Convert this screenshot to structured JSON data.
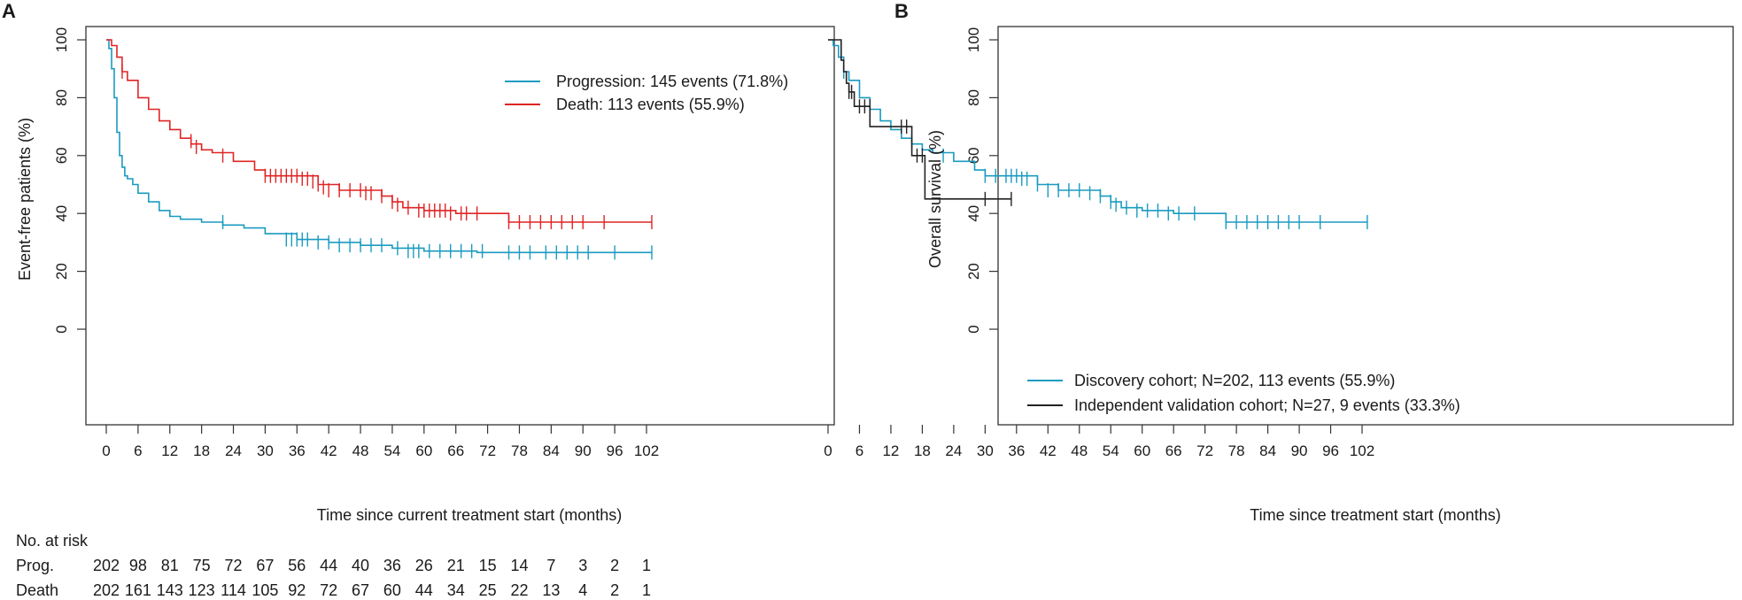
{
  "colors": {
    "progression": "#1a9bc0",
    "death": "#e02424",
    "discovery": "#1a9bc0",
    "validation": "#222222",
    "axis": "#333333"
  },
  "chart_data": [
    {
      "panel": "A",
      "type": "line",
      "xlabel": "Time since current treatment start (months)",
      "ylabel": "Event-free patients (%)",
      "xlim": [
        0,
        102
      ],
      "ylim": [
        0,
        100
      ],
      "xticks": [
        "0",
        "6",
        "12",
        "18",
        "24",
        "30",
        "36",
        "42",
        "48",
        "54",
        "60",
        "66",
        "72",
        "78",
        "84",
        "90",
        "96",
        "102"
      ],
      "yticks": [
        "0",
        "20",
        "40",
        "60",
        "80",
        "100"
      ],
      "legend_position": "top-right",
      "series": [
        {
          "name": "Progression: 145 events (71.8%)",
          "color": "#1a9bc0",
          "x": [
            0,
            0.5,
            1,
            1.5,
            2,
            2.5,
            3,
            3.5,
            4,
            5,
            6,
            8,
            10,
            12,
            14,
            18,
            22,
            26,
            30,
            36,
            42,
            48,
            54,
            60,
            70,
            80,
            90,
            103
          ],
          "y": [
            100,
            97,
            90,
            80,
            68,
            60,
            56,
            53,
            52,
            50,
            47,
            44,
            41,
            39,
            38,
            37,
            36,
            35,
            33,
            31,
            30,
            29,
            28,
            27,
            26.5,
            26.5,
            26.5,
            26.5
          ],
          "censor_x": [
            22,
            34,
            35,
            36,
            37,
            38,
            40,
            42,
            44,
            46,
            48,
            50,
            52,
            55,
            57,
            58,
            59,
            61,
            63,
            65,
            67,
            69,
            71,
            76,
            78,
            80,
            83,
            85,
            87,
            89,
            91,
            96,
            103
          ],
          "censor_y": [
            37,
            31,
            31,
            31,
            31,
            31,
            30,
            30,
            29,
            29,
            29,
            29,
            29,
            28,
            27,
            27,
            27,
            27,
            27,
            27,
            27,
            27,
            27,
            26.5,
            26.5,
            26.5,
            26.5,
            26.5,
            26.5,
            26.5,
            26.5,
            26.5,
            26.5
          ]
        },
        {
          "name": "Death: 113 events (55.9%)",
          "color": "#e02424",
          "x": [
            0,
            1,
            2,
            3,
            4,
            6,
            8,
            10,
            12,
            14,
            16,
            18,
            20,
            24,
            28,
            30,
            36,
            40,
            44,
            48,
            52,
            54,
            56,
            60,
            66,
            70,
            76,
            80,
            90,
            103
          ],
          "y": [
            100,
            98,
            94,
            89,
            86,
            80,
            76,
            72,
            69,
            66,
            64,
            62,
            61,
            58,
            55,
            53,
            53,
            50,
            48,
            48,
            46,
            44,
            42,
            41,
            40,
            40,
            37,
            37,
            37,
            37
          ],
          "censor_x": [
            3,
            16,
            17,
            22,
            30,
            31,
            32,
            33,
            34,
            35,
            36,
            37,
            38,
            39,
            40,
            41,
            42,
            44,
            46,
            48,
            49,
            50,
            52,
            54,
            55,
            57,
            59,
            60,
            61,
            62,
            63,
            64,
            65,
            67,
            68,
            70,
            76,
            78,
            80,
            82,
            84,
            86,
            88,
            90,
            94,
            103
          ],
          "censor_y": [
            89,
            65,
            63,
            60,
            53,
            53,
            53,
            53,
            53,
            53,
            53,
            52,
            52,
            51,
            50,
            49,
            48,
            48,
            48,
            48,
            47,
            47,
            46,
            44,
            43,
            42,
            41,
            41,
            41,
            41,
            41,
            41,
            40,
            40,
            40,
            40,
            37,
            37,
            37,
            37,
            37,
            37,
            37,
            37,
            37,
            37
          ]
        }
      ],
      "risk_table": {
        "title": "No. at risk",
        "rows": [
          {
            "label": "Prog.",
            "values": [
              "202",
              "98",
              "81",
              "75",
              "72",
              "67",
              "56",
              "44",
              "40",
              "36",
              "26",
              "21",
              "15",
              "14",
              "7",
              "3",
              "2",
              "1"
            ]
          },
          {
            "label": "Death",
            "values": [
              "202",
              "161",
              "143",
              "123",
              "114",
              "105",
              "92",
              "72",
              "67",
              "60",
              "44",
              "34",
              "25",
              "22",
              "13",
              "4",
              "2",
              "1"
            ]
          }
        ]
      }
    },
    {
      "panel": "B",
      "type": "line",
      "xlabel": "Time since treatment start (months)",
      "ylabel": "Overall survival (%)",
      "xlim": [
        0,
        102
      ],
      "ylim": [
        0,
        100
      ],
      "xticks": [
        "0",
        "6",
        "12",
        "18",
        "24",
        "30",
        "36",
        "42",
        "48",
        "54",
        "60",
        "66",
        "72",
        "78",
        "84",
        "90",
        "96",
        "102"
      ],
      "yticks": [
        "0",
        "20",
        "40",
        "60",
        "80",
        "100"
      ],
      "legend_position": "bottom-left",
      "series": [
        {
          "name": "Discovery cohort; N=202, 113 events (55.9%)",
          "color": "#1a9bc0",
          "x": [
            0,
            1,
            2,
            3,
            4,
            6,
            8,
            10,
            12,
            14,
            16,
            18,
            20,
            24,
            28,
            30,
            36,
            40,
            44,
            48,
            52,
            54,
            56,
            60,
            66,
            70,
            76,
            80,
            90,
            103
          ],
          "y": [
            100,
            98,
            94,
            89,
            86,
            80,
            76,
            72,
            69,
            66,
            64,
            62,
            61,
            58,
            55,
            53,
            53,
            50,
            48,
            48,
            46,
            44,
            42,
            41,
            40,
            40,
            37,
            37,
            37,
            37
          ],
          "censor_x": [
            3,
            16,
            22,
            30,
            32,
            34,
            35,
            36,
            37,
            38,
            40,
            42,
            44,
            46,
            48,
            50,
            52,
            54,
            55,
            57,
            59,
            61,
            63,
            65,
            67,
            70,
            76,
            78,
            80,
            82,
            84,
            86,
            88,
            90,
            94,
            103
          ],
          "censor_y": [
            89,
            65,
            60,
            53,
            53,
            53,
            53,
            53,
            52,
            52,
            50,
            48,
            48,
            48,
            48,
            47,
            46,
            44,
            43,
            42,
            41,
            41,
            41,
            40,
            40,
            40,
            37,
            37,
            37,
            37,
            37,
            37,
            37,
            37,
            37,
            37
          ]
        },
        {
          "name": "Independent validation cohort; N=27, 9 events (33.3%)",
          "color": "#222222",
          "x": [
            0,
            2,
            2.5,
            3,
            3.5,
            4,
            5,
            8,
            15,
            16,
            18.5,
            35
          ],
          "y": [
            100,
            100,
            93,
            89,
            85,
            82,
            77,
            70,
            70,
            60,
            45,
            45
          ],
          "censor_x": [
            4,
            4.5,
            6,
            7,
            8,
            14,
            15,
            17,
            18,
            30,
            35
          ],
          "censor_y": [
            82,
            82,
            77,
            77,
            77,
            70,
            70,
            60,
            60,
            45,
            45
          ]
        }
      ]
    }
  ]
}
